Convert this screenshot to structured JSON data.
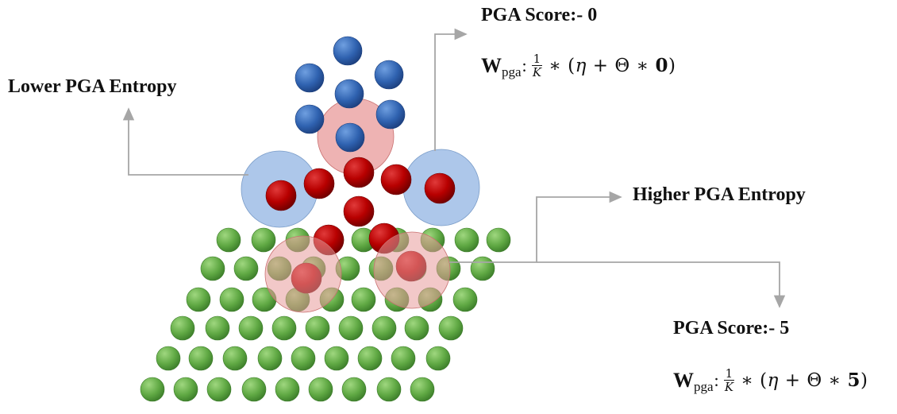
{
  "labels": {
    "score_top": "PGA Score:- 0",
    "lower_entropy": "Lower PGA Entropy",
    "higher_entropy": "Higher PGA Entropy",
    "score_bottom": "PGA Score:- 5"
  },
  "formula_top": {
    "w": "W",
    "sub": "pga",
    "colon": ":",
    "num": "1",
    "den": "K",
    "op": "∗ (",
    "eta": "η",
    "mid": " +  Θ ∗ ",
    "score": "0",
    "close": ")"
  },
  "formula_bottom": {
    "w": "W",
    "sub": "pga",
    "colon": ":",
    "num": "1",
    "den": "K",
    "op": "∗ (",
    "eta": "η",
    "mid": " +  Θ ∗ ",
    "score": "5",
    "close": ")"
  },
  "colors": {
    "blue_node": "#2f62b0",
    "red_node": "#b80000",
    "green_node": "#5fa843",
    "blue_zone": "#9fbde6",
    "red_zone": "#e89a9a",
    "arrow": "#a6a6a6"
  }
}
